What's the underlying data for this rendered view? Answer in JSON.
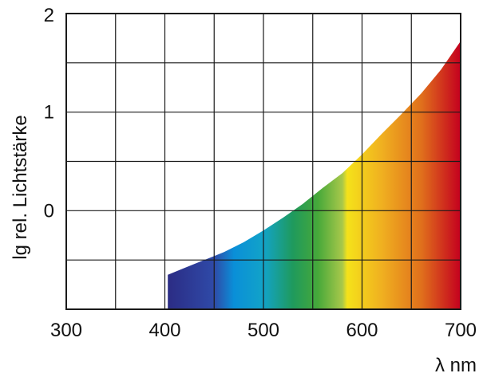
{
  "chart_data": {
    "type": "area",
    "title": "",
    "xlabel": "λ nm",
    "ylabel": "lg rel. Lichtstärke",
    "xlim": [
      300,
      700
    ],
    "ylim": [
      -1,
      2
    ],
    "x_ticks": [
      300,
      400,
      500,
      600,
      700
    ],
    "x_tick_labels": [
      "300",
      "400",
      "500",
      "600",
      "700"
    ],
    "y_ticks": [
      0,
      1,
      2
    ],
    "y_tick_labels": [
      "0",
      "1",
      "2"
    ],
    "grid": true,
    "fill": "visible-spectrum-gradient",
    "spectrum_colors": [
      {
        "at": 400,
        "color": "#2b2a82"
      },
      {
        "at": 450,
        "color": "#2f4aa8"
      },
      {
        "at": 470,
        "color": "#0a8fd8"
      },
      {
        "at": 500,
        "color": "#12a3c8"
      },
      {
        "at": 530,
        "color": "#1f9a5c"
      },
      {
        "at": 555,
        "color": "#46a83a"
      },
      {
        "at": 580,
        "color": "#a8c84a"
      },
      {
        "at": 585,
        "color": "#f5e21a"
      },
      {
        "at": 620,
        "color": "#f0b020"
      },
      {
        "at": 660,
        "color": "#e0701c"
      },
      {
        "at": 700,
        "color": "#c4001e"
      }
    ],
    "series": [
      {
        "x": [
          403,
          420,
          440,
          460,
          480,
          500,
          520,
          540,
          560,
          580,
          600,
          620,
          640,
          660,
          680,
          700
        ],
        "y": [
          -0.65,
          -0.58,
          -0.5,
          -0.42,
          -0.32,
          -0.2,
          -0.07,
          0.07,
          0.23,
          0.38,
          0.57,
          0.78,
          0.98,
          1.19,
          1.43,
          1.72
        ]
      }
    ]
  }
}
